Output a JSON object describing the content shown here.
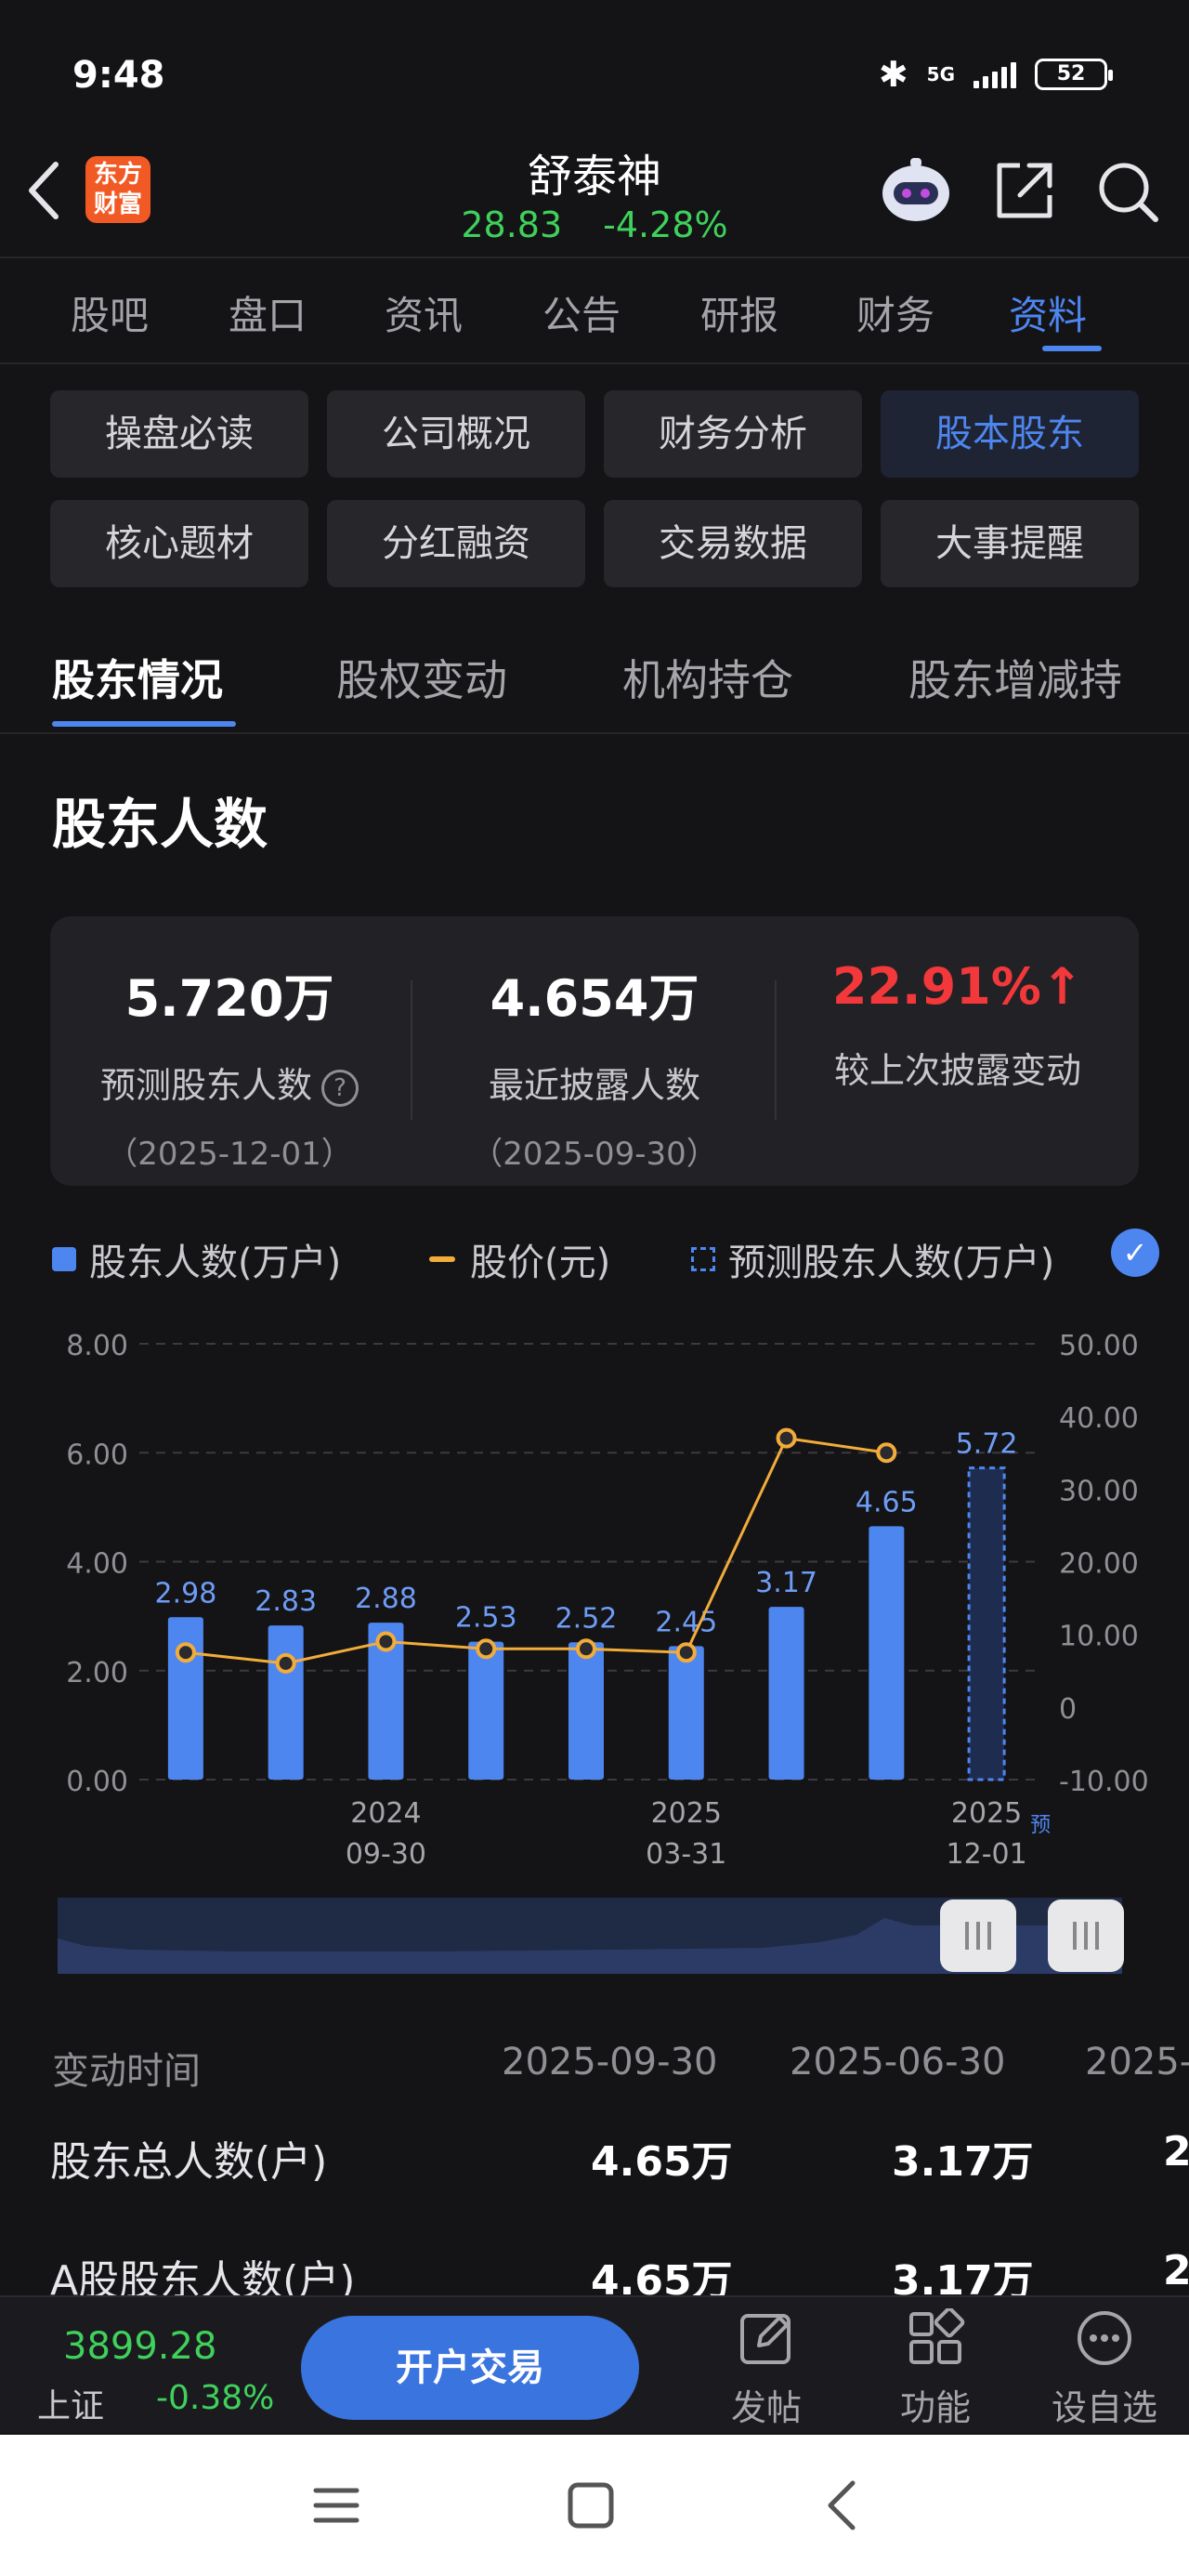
{
  "status": {
    "time": "9:48",
    "network": "5G",
    "battery": "52"
  },
  "header": {
    "logo_text_1": "东方",
    "logo_text_2": "财富",
    "stock_name": "舒泰神",
    "price": "28.83",
    "change": "-4.28%"
  },
  "main_tabs": [
    "股吧",
    "盘口",
    "资讯",
    "公告",
    "研报",
    "财务",
    "资料"
  ],
  "grid": [
    "操盘必读",
    "公司概况",
    "财务分析",
    "股本股东",
    "核心题材",
    "分红融资",
    "交易数据",
    "大事提醒"
  ],
  "sub_tabs": [
    "股东情况",
    "股权变动",
    "机构持仓",
    "股东增减持"
  ],
  "section_title": "股东人数",
  "summary": [
    {
      "value": "5.720万",
      "label": "预测股东人数",
      "date": "（2025-12-01）"
    },
    {
      "value": "4.654万",
      "label": "最近披露人数",
      "date": "（2025-09-30）"
    },
    {
      "value": "22.91%",
      "label": "较上次披露变动",
      "date": ""
    }
  ],
  "legend": {
    "holders": "股东人数(万户)",
    "price": "股价(元)",
    "forecast": "预测股东人数(万户)"
  },
  "chart_data": {
    "type": "bar",
    "bar_values": [
      2.98,
      2.83,
      2.88,
      2.53,
      2.52,
      2.45,
      3.17,
      4.65,
      5.72
    ],
    "bar_labels": [
      "2.98",
      "2.83",
      "2.88",
      "2.53",
      "2.52",
      "2.45",
      "3.17",
      "4.65",
      "5.72"
    ],
    "forecast_index": 8,
    "price_values": [
      7.5,
      6,
      9,
      8,
      8,
      7.5,
      37,
      35
    ],
    "ylim_left": [
      0,
      8
    ],
    "ylim_right": [
      -10,
      50
    ],
    "left_ticks": [
      "0.00",
      "2.00",
      "4.00",
      "6.00",
      "8.00"
    ],
    "right_ticks": [
      "-10.00",
      "0",
      "10.00",
      "20.00",
      "30.00",
      "40.00",
      "50.00"
    ],
    "x_labels": [
      {
        "index": 2,
        "year": "2024",
        "date": "09-30"
      },
      {
        "index": 5,
        "year": "2025",
        "date": "03-31"
      },
      {
        "index": 8,
        "year": "2025",
        "date": "12-01"
      }
    ],
    "forecast_mark": "预"
  },
  "table": {
    "header_label": "变动时间",
    "dates": [
      "2025-09-30",
      "2025-06-30",
      "2025-"
    ],
    "rows": [
      {
        "label": "股东总人数(户)",
        "values": [
          "4.65万",
          "3.17万",
          "2"
        ]
      },
      {
        "label": "A股股东人数(户)",
        "values": [
          "4.65万",
          "3.17万",
          "2"
        ]
      }
    ]
  },
  "bottom": {
    "index_value": "3899.28",
    "index_name": "上证",
    "index_change": "-0.38%",
    "trade_button": "开户交易",
    "tools": [
      "发帖",
      "功能",
      "设自选"
    ]
  }
}
